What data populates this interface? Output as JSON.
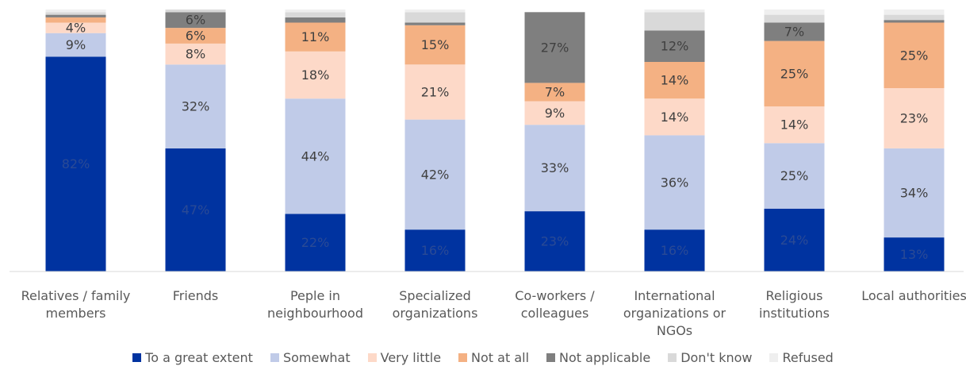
{
  "chart_data": {
    "type": "stacked_bar",
    "categories": [
      "Relatives / family members",
      "Friends",
      "Peple in neighbourhood",
      "Specialized organizations",
      "Co-workers / colleagues",
      "International organizations or NGOs",
      "Religious institutions",
      "Local authorities"
    ],
    "ylim": [
      0,
      100
    ],
    "series": [
      {
        "name": "To a great extent",
        "color": "#0033a0",
        "label_color": "#2a4a95",
        "values": [
          82,
          47,
          22,
          16,
          23,
          16,
          24,
          13
        ],
        "value_labels": [
          "82%",
          "47%",
          "22%",
          "16%",
          "23%",
          "16%",
          "24%",
          "13%"
        ]
      },
      {
        "name": "Somewhat",
        "color": "#c0cbe8",
        "label_color": "#404040",
        "values": [
          9,
          32,
          44,
          42,
          33,
          36,
          25,
          34
        ],
        "value_labels": [
          "9%",
          "32%",
          "44%",
          "42%",
          "33%",
          "36%",
          "25%",
          "34%"
        ]
      },
      {
        "name": "Very little",
        "color": "#fdd9c8",
        "label_color": "#404040",
        "values": [
          4,
          8,
          18,
          21,
          9,
          14,
          14,
          23
        ],
        "value_labels": [
          "4%",
          "8%",
          "18%",
          "21%",
          "9%",
          "14%",
          "14%",
          "23%"
        ]
      },
      {
        "name": "Not at all",
        "color": "#f4b183",
        "label_color": "#404040",
        "values": [
          2,
          6,
          11,
          15,
          7,
          14,
          25,
          25
        ],
        "value_labels": [
          null,
          "6%",
          "11%",
          "15%",
          "7%",
          "14%",
          "25%",
          "25%"
        ]
      },
      {
        "name": "Not applicable",
        "color": "#7f7f7f",
        "label_color": "#404040",
        "values": [
          1,
          6,
          2,
          1,
          27,
          12,
          7,
          1
        ],
        "value_labels": [
          null,
          "6%",
          null,
          null,
          "27%",
          "12%",
          "7%",
          null
        ]
      },
      {
        "name": "Don't know",
        "color": "#d9d9d9",
        "label_color": "#404040",
        "values": [
          1,
          1,
          2,
          4,
          0,
          7,
          3,
          2
        ],
        "value_labels": [
          null,
          null,
          null,
          null,
          null,
          null,
          null,
          null
        ]
      },
      {
        "name": "Refused",
        "color": "#efefef",
        "label_color": "#404040",
        "values": [
          1,
          0,
          1,
          1,
          0,
          1,
          2,
          2
        ],
        "value_labels": [
          null,
          null,
          null,
          null,
          null,
          null,
          null,
          null
        ]
      }
    ]
  }
}
